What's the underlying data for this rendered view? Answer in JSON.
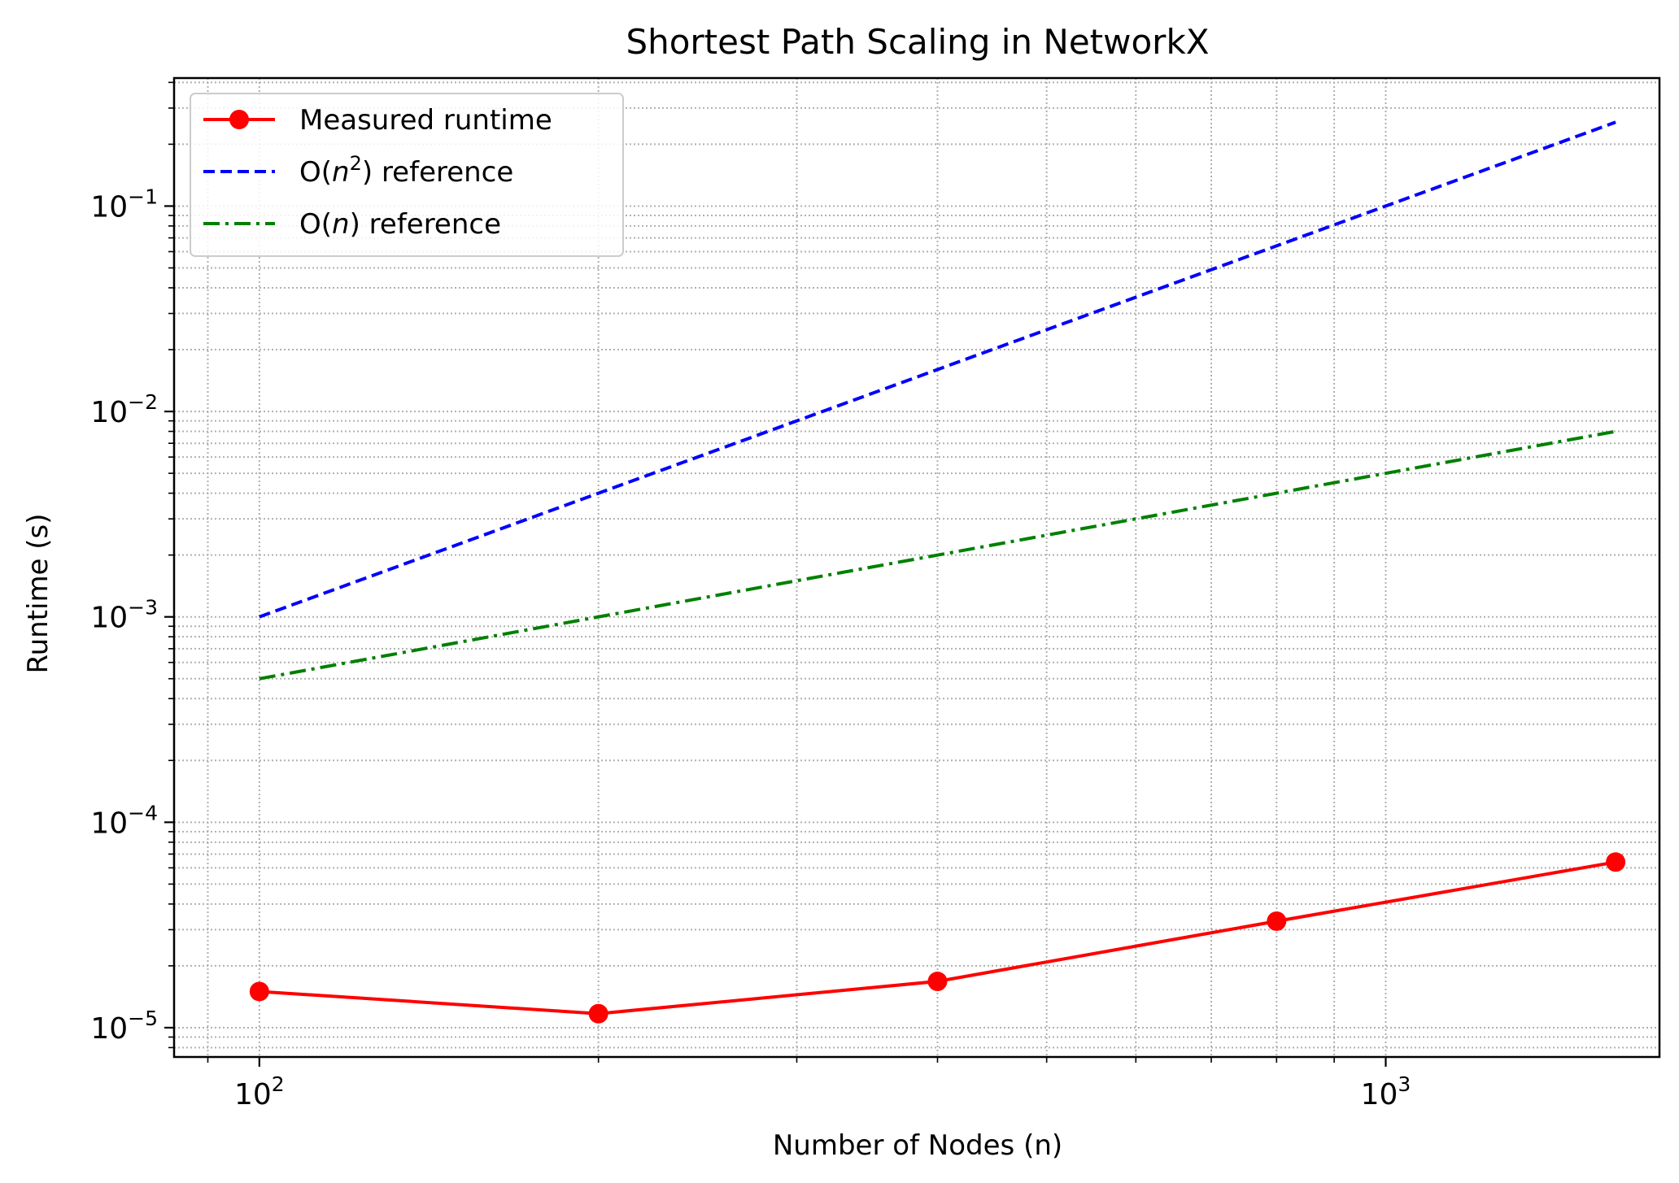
{
  "chart_data": {
    "type": "line",
    "title": "Shortest Path Scaling in NetworkX",
    "xlabel": "Number of Nodes (n)",
    "ylabel": "Runtime (s)",
    "xscale": "log",
    "yscale": "log",
    "xlim": [
      84,
      1750
    ],
    "ylim": [
      7.2e-06,
      0.42
    ],
    "grid": "on (major and minor, dotted)",
    "legend_position": "top-left",
    "x_ticks": [
      {
        "value": 100,
        "base": "10",
        "exp": "2"
      },
      {
        "value": 1000,
        "base": "10",
        "exp": "3"
      }
    ],
    "y_ticks": [
      {
        "value": 1e-05,
        "base": "10",
        "exp": "−5"
      },
      {
        "value": 0.0001,
        "base": "10",
        "exp": "−4"
      },
      {
        "value": 0.001,
        "base": "10",
        "exp": "−3"
      },
      {
        "value": 0.01,
        "base": "10",
        "exp": "−2"
      },
      {
        "value": 0.1,
        "base": "10",
        "exp": "−1"
      }
    ],
    "series": [
      {
        "name": "Measured runtime",
        "color": "#ff0000",
        "style": "solid",
        "marker": "circle",
        "x": [
          100,
          200,
          400,
          800,
          1600
        ],
        "y": [
          1.5e-05,
          1.17e-05,
          1.68e-05,
          3.3e-05,
          6.4e-05
        ]
      },
      {
        "name_prefix": "O(",
        "name_var": "n",
        "name_sup": "2",
        "name_suffix": ") reference",
        "color": "#0000ff",
        "style": "dashed",
        "marker": "none",
        "x": [
          100,
          200,
          400,
          800,
          1600
        ],
        "y": [
          0.001,
          0.004,
          0.016,
          0.064,
          0.256
        ]
      },
      {
        "name_prefix": "O(",
        "name_var": "n",
        "name_sup": "",
        "name_suffix": ") reference",
        "color": "#008000",
        "style": "dashdot",
        "marker": "none",
        "x": [
          100,
          200,
          400,
          800,
          1600
        ],
        "y": [
          0.0005,
          0.001,
          0.002,
          0.004,
          0.008
        ]
      }
    ]
  }
}
